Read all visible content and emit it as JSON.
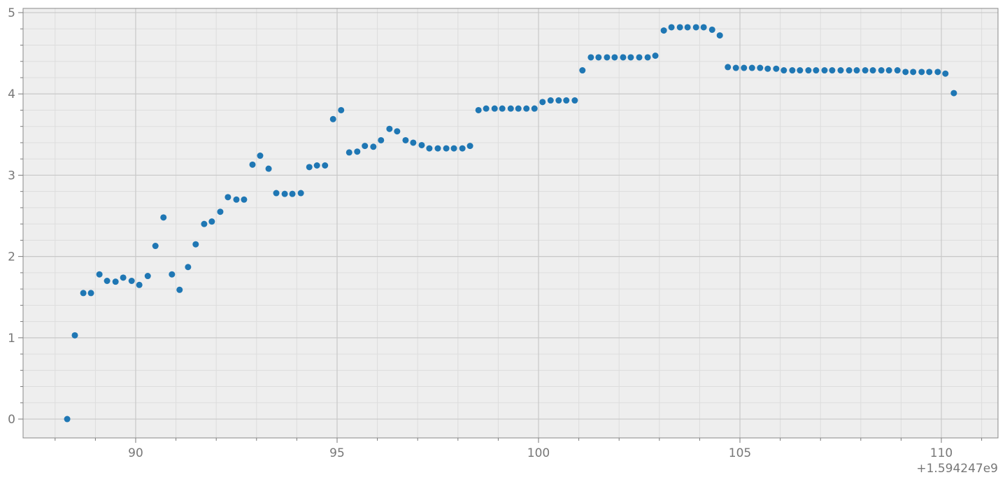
{
  "chart_data": {
    "type": "scatter",
    "x_offset_label": "+1.594247e9",
    "x": [
      88.3,
      88.49,
      88.7,
      88.89,
      89.1,
      89.29,
      89.5,
      89.69,
      89.9,
      90.09,
      90.3,
      90.49,
      90.69,
      90.9,
      91.09,
      91.3,
      91.49,
      91.7,
      91.89,
      92.1,
      92.29,
      92.5,
      92.69,
      92.9,
      93.09,
      93.3,
      93.49,
      93.7,
      93.89,
      94.1,
      94.31,
      94.5,
      94.7,
      94.9,
      95.1,
      95.3,
      95.5,
      95.69,
      95.9,
      96.09,
      96.3,
      96.49,
      96.7,
      96.89,
      97.1,
      97.29,
      97.5,
      97.71,
      97.9,
      98.11,
      98.3,
      98.51,
      98.7,
      98.91,
      99.1,
      99.31,
      99.5,
      99.7,
      99.9,
      100.1,
      100.3,
      100.5,
      100.69,
      100.9,
      101.09,
      101.3,
      101.49,
      101.7,
      101.89,
      102.1,
      102.29,
      102.5,
      102.71,
      102.9,
      103.11,
      103.3,
      103.51,
      103.7,
      103.91,
      104.1,
      104.31,
      104.5,
      104.7,
      104.9,
      105.1,
      105.3,
      105.5,
      105.69,
      105.9,
      106.09,
      106.3,
      106.49,
      106.7,
      106.89,
      107.1,
      107.29,
      107.5,
      107.71,
      107.9,
      108.11,
      108.3,
      108.51,
      108.7,
      108.91,
      109.11,
      109.3,
      109.51,
      109.7,
      109.91,
      110.1,
      110.31
    ],
    "values": [
      0,
      1.03,
      1.55,
      1.55,
      1.78,
      1.7,
      1.69,
      1.74,
      1.7,
      1.65,
      1.76,
      2.13,
      2.48,
      1.78,
      1.59,
      1.87,
      2.15,
      2.4,
      2.43,
      2.55,
      2.73,
      2.7,
      2.7,
      3.13,
      3.24,
      3.08,
      2.78,
      2.77,
      2.77,
      2.78,
      3.1,
      3.12,
      3.12,
      3.69,
      3.8,
      3.28,
      3.29,
      3.36,
      3.35,
      3.43,
      3.57,
      3.54,
      3.43,
      3.4,
      3.37,
      3.33,
      3.33,
      3.33,
      3.33,
      3.33,
      3.36,
      3.8,
      3.82,
      3.82,
      3.82,
      3.82,
      3.82,
      3.82,
      3.82,
      3.9,
      3.92,
      3.92,
      3.92,
      3.92,
      4.29,
      4.45,
      4.45,
      4.45,
      4.45,
      4.45,
      4.45,
      4.45,
      4.45,
      4.47,
      4.78,
      4.82,
      4.82,
      4.82,
      4.82,
      4.82,
      4.79,
      4.72,
      4.33,
      4.32,
      4.32,
      4.32,
      4.32,
      4.31,
      4.31,
      4.29,
      4.29,
      4.29,
      4.29,
      4.29,
      4.29,
      4.29,
      4.29,
      4.29,
      4.29,
      4.29,
      4.29,
      4.29,
      4.29,
      4.29,
      4.27,
      4.27,
      4.27,
      4.27,
      4.27,
      4.25,
      4.01
    ],
    "color": "#1f77b4",
    "xlim": [
      87.205,
      111.406
    ],
    "ylim": [
      -0.232,
      5.052
    ],
    "xticks": [
      90,
      95,
      100,
      105,
      110
    ],
    "yticks": [
      0,
      1,
      2,
      3,
      4,
      5
    ],
    "xminorticks": [
      88,
      89,
      91,
      92,
      93,
      94,
      96,
      97,
      98,
      99,
      101,
      102,
      103,
      104,
      106,
      107,
      108,
      109,
      111
    ],
    "yminorticks": [
      0.2,
      0.4,
      0.6,
      0.8,
      1.2,
      1.4,
      1.6,
      1.8,
      2.2,
      2.4,
      2.6,
      2.8,
      3.2,
      3.4,
      3.6,
      3.8,
      4.2,
      4.4,
      4.6,
      4.8
    ],
    "grid": true
  }
}
